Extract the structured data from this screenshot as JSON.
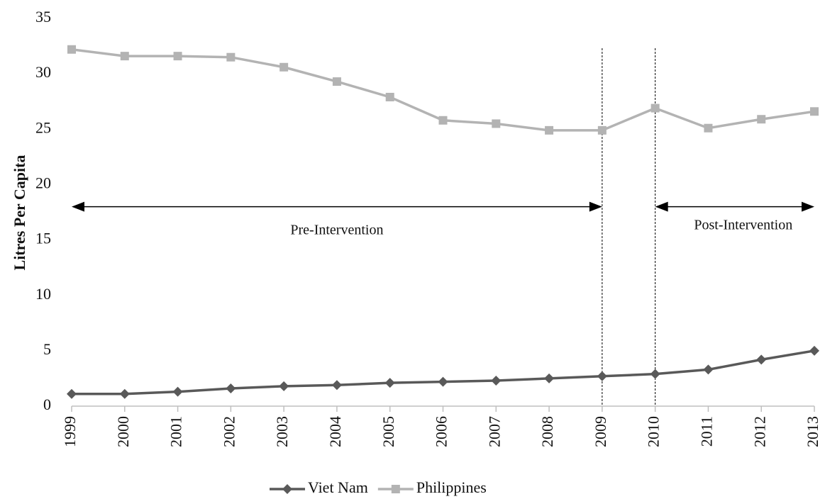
{
  "chart_data": {
    "type": "line",
    "y_label": "Litres Per Capita",
    "x": [
      1999,
      2000,
      2001,
      2002,
      2003,
      2004,
      2005,
      2006,
      2007,
      2008,
      2009,
      2010,
      2011,
      2012,
      2013
    ],
    "series": [
      {
        "name": "Viet Nam",
        "color": "#595959",
        "marker": "diamond",
        "values": [
          1.1,
          1.1,
          1.3,
          1.6,
          1.8,
          1.9,
          2.1,
          2.2,
          2.3,
          2.5,
          2.7,
          2.9,
          3.3,
          4.2,
          5.0
        ]
      },
      {
        "name": "Philippines",
        "color": "#b3b3b3",
        "marker": "square",
        "values": [
          32.2,
          31.6,
          31.6,
          31.5,
          30.6,
          29.3,
          27.9,
          25.8,
          25.5,
          24.9,
          24.9,
          26.9,
          25.1,
          25.9,
          26.6
        ]
      }
    ],
    "xlim": [
      1999,
      2013
    ],
    "xticks": [
      1999,
      2000,
      2001,
      2002,
      2003,
      2004,
      2005,
      2006,
      2007,
      2008,
      2009,
      2010,
      2011,
      2012,
      2013
    ],
    "ylim": [
      0,
      35
    ],
    "yticks": [
      0,
      5,
      10,
      15,
      20,
      25,
      30,
      35
    ],
    "vlines": [
      2009,
      2010
    ],
    "annotations": [
      {
        "text": "Pre-Intervention",
        "x": [
          1999,
          2009
        ],
        "y": 18
      },
      {
        "text": "Post-Intervention",
        "x": [
          2010,
          2013
        ],
        "y": 18
      }
    ],
    "legend": "bottom"
  }
}
